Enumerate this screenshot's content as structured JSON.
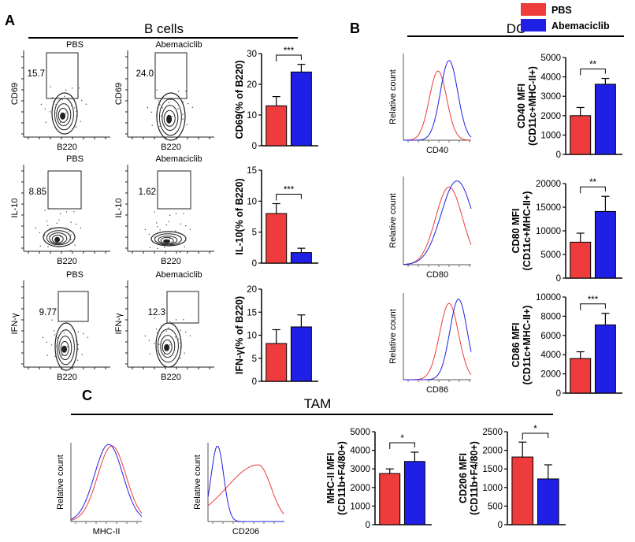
{
  "panels": {
    "A": {
      "letter": "A",
      "title": "B cells"
    },
    "B": {
      "letter": "B",
      "title": "DC"
    },
    "C": {
      "letter": "C",
      "title": "TAM"
    }
  },
  "legend": [
    {
      "label": "PBS",
      "color": "#ee3b3b"
    },
    {
      "label": "Abemaciclib",
      "color": "#1f1fe6"
    }
  ],
  "flow_plots": [
    {
      "title": "PBS",
      "ylabel": "CD69",
      "xlabel": "B220",
      "value": "15.7"
    },
    {
      "title": "Abemaciclib",
      "ylabel": "CD69",
      "xlabel": "B220",
      "value": "24.0"
    },
    {
      "title": "PBS",
      "ylabel": "IL-10",
      "xlabel": "B220",
      "value": "8.85"
    },
    {
      "title": "Abemaciclib",
      "ylabel": "IL-10",
      "xlabel": "B220",
      "value": "1.62"
    },
    {
      "title": "PBS",
      "ylabel": "IFN-γ",
      "xlabel": "B220",
      "value": "9.77"
    },
    {
      "title": "Abemaciclib",
      "ylabel": "IFN-γ",
      "xlabel": "B220",
      "value": "12.3"
    }
  ],
  "histograms": [
    {
      "ylabel": "Relative count",
      "xlabel": "CD40"
    },
    {
      "ylabel": "Relative count",
      "xlabel": "CD80"
    },
    {
      "ylabel": "Relative count",
      "xlabel": "CD86"
    },
    {
      "ylabel": "Relative count",
      "xlabel": "MHC-II"
    },
    {
      "ylabel": "Relative count",
      "xlabel": "CD206"
    }
  ],
  "chart_data": [
    {
      "type": "bar",
      "title": "",
      "ylabel": "CD69(% of B220)",
      "ylim": [
        0,
        30
      ],
      "ticks": [
        0,
        10,
        20,
        30
      ],
      "categories": [
        "PBS",
        "Abemaciclib"
      ],
      "values": [
        13,
        24
      ],
      "errors": [
        3,
        2.5
      ],
      "sig": "***"
    },
    {
      "type": "bar",
      "title": "",
      "ylabel": "IL-10(% of B220)",
      "ylim": [
        0,
        15
      ],
      "ticks": [
        0,
        5,
        10,
        15
      ],
      "categories": [
        "PBS",
        "Abemaciclib"
      ],
      "values": [
        8,
        1.7
      ],
      "errors": [
        1.6,
        0.7
      ],
      "sig": "***"
    },
    {
      "type": "bar",
      "title": "",
      "ylabel": "IFN-γ(% of B220)",
      "ylim": [
        0,
        20
      ],
      "ticks": [
        0,
        5,
        10,
        15,
        20
      ],
      "categories": [
        "PBS",
        "Abemaciclib"
      ],
      "values": [
        8.2,
        11.8
      ],
      "errors": [
        3,
        2.6
      ],
      "sig": ""
    },
    {
      "type": "bar",
      "title": "",
      "ylabel": "CD40 MFI",
      "ylabel2": "(CD11c+MHC-II+)",
      "ylim": [
        0,
        5000
      ],
      "ticks": [
        0,
        1000,
        2000,
        3000,
        4000,
        5000
      ],
      "categories": [
        "PBS",
        "Abemaciclib"
      ],
      "values": [
        2000,
        3620
      ],
      "errors": [
        420,
        300
      ],
      "sig": "**"
    },
    {
      "type": "bar",
      "title": "",
      "ylabel": "CD80 MFI",
      "ylabel2": "(CD11c+MHC-II+)",
      "ylim": [
        0,
        20000
      ],
      "ticks": [
        0,
        5000,
        10000,
        15000,
        20000
      ],
      "categories": [
        "PBS",
        "Abemaciclib"
      ],
      "values": [
        7600,
        14100
      ],
      "errors": [
        1900,
        3200
      ],
      "sig": "**"
    },
    {
      "type": "bar",
      "title": "",
      "ylabel": "CD86 MFI",
      "ylabel2": "(CD11c+MHC-II+)",
      "ylim": [
        0,
        10000
      ],
      "ticks": [
        0,
        2000,
        4000,
        6000,
        8000,
        10000
      ],
      "categories": [
        "PBS",
        "Abemaciclib"
      ],
      "values": [
        3600,
        7100
      ],
      "errors": [
        700,
        1200
      ],
      "sig": "***"
    },
    {
      "type": "bar",
      "title": "",
      "ylabel": "MHC-II MFI",
      "ylabel2": "(CD11b+F4/80+)",
      "ylim": [
        0,
        5000
      ],
      "ticks": [
        0,
        1000,
        2000,
        3000,
        4000,
        5000
      ],
      "categories": [
        "PBS",
        "Abemaciclib"
      ],
      "values": [
        2750,
        3400
      ],
      "errors": [
        250,
        500
      ],
      "sig": "*"
    },
    {
      "type": "bar",
      "title": "",
      "ylabel": "CD206 MFI",
      "ylabel2": "(CD11b+F4/80+)",
      "ylim": [
        0,
        2500
      ],
      "ticks": [
        0,
        500,
        1000,
        1500,
        2000,
        2500
      ],
      "categories": [
        "PBS",
        "Abemaciclib"
      ],
      "values": [
        1820,
        1230
      ],
      "errors": [
        400,
        380
      ],
      "sig": "*"
    }
  ]
}
